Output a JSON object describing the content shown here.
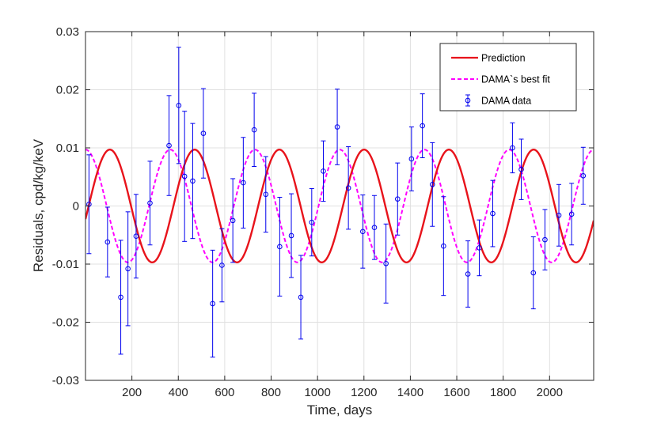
{
  "chart_data": {
    "type": "line",
    "title": "",
    "xlabel": "Time, days",
    "ylabel": "Residuals, cpd/kg/keV",
    "xlim": [
      0,
      2190
    ],
    "ylim": [
      -0.03,
      0.03
    ],
    "x_ticks": [
      200,
      400,
      600,
      800,
      1000,
      1200,
      1400,
      1600,
      1800,
      2000
    ],
    "x_tick_labels": [
      "200",
      "400",
      "600",
      "800",
      "1000",
      "1200",
      "1400",
      "1600",
      "1800",
      "2000"
    ],
    "y_ticks": [
      -0.03,
      -0.02,
      -0.01,
      0,
      0.01,
      0.02,
      0.03
    ],
    "y_tick_labels": [
      "-0.03",
      "-0.02",
      "-0.01",
      "0",
      "0.01",
      "0.02",
      "0.03"
    ],
    "grid": true,
    "legend_position": "top-right",
    "colors": {
      "prediction": "#e8131b",
      "best_fit": "#ff00ff",
      "data": "#0000ee",
      "grid": "#e0e0e0",
      "axis": "#262626"
    },
    "series": [
      {
        "name": "Prediction",
        "kind": "curve",
        "style": "solid",
        "amplitude": 0.0097,
        "period": 365.25,
        "peak_day": 105
      },
      {
        "name": "DAMA`s best fit",
        "kind": "curve",
        "style": "dashed",
        "amplitude": 0.0097,
        "period": 365.25,
        "peak_day": 0
      },
      {
        "name": "DAMA data",
        "kind": "errorbar",
        "points": [
          {
            "x": 15,
            "y": 0.0003,
            "err": 0.0085
          },
          {
            "x": 95,
            "y": -0.0062,
            "err": 0.006
          },
          {
            "x": 152,
            "y": -0.0157,
            "err": 0.0098
          },
          {
            "x": 183,
            "y": -0.0108,
            "err": 0.0098
          },
          {
            "x": 218,
            "y": -0.0052,
            "err": 0.0072
          },
          {
            "x": 278,
            "y": 0.0005,
            "err": 0.0072
          },
          {
            "x": 360,
            "y": 0.0104,
            "err": 0.0086
          },
          {
            "x": 402,
            "y": 0.0173,
            "err": 0.01
          },
          {
            "x": 427,
            "y": 0.0051,
            "err": 0.0112
          },
          {
            "x": 462,
            "y": 0.0043,
            "err": 0.0099
          },
          {
            "x": 508,
            "y": 0.0125,
            "err": 0.0077
          },
          {
            "x": 548,
            "y": -0.0168,
            "err": 0.0092
          },
          {
            "x": 588,
            "y": -0.0102,
            "err": 0.0063
          },
          {
            "x": 635,
            "y": -0.0025,
            "err": 0.0072
          },
          {
            "x": 680,
            "y": 0.004,
            "err": 0.0078
          },
          {
            "x": 727,
            "y": 0.0131,
            "err": 0.0063
          },
          {
            "x": 777,
            "y": 0.002,
            "err": 0.0065
          },
          {
            "x": 837,
            "y": -0.007,
            "err": 0.0085
          },
          {
            "x": 887,
            "y": -0.0051,
            "err": 0.0072
          },
          {
            "x": 928,
            "y": -0.0157,
            "err": 0.0072
          },
          {
            "x": 975,
            "y": -0.0028,
            "err": 0.0058
          },
          {
            "x": 1025,
            "y": 0.006,
            "err": 0.0052
          },
          {
            "x": 1085,
            "y": 0.0136,
            "err": 0.0065
          },
          {
            "x": 1133,
            "y": 0.0031,
            "err": 0.0071
          },
          {
            "x": 1195,
            "y": -0.0044,
            "err": 0.0063
          },
          {
            "x": 1245,
            "y": -0.0037,
            "err": 0.0055
          },
          {
            "x": 1295,
            "y": -0.0099,
            "err": 0.0068
          },
          {
            "x": 1345,
            "y": 0.0012,
            "err": 0.0062
          },
          {
            "x": 1405,
            "y": 0.0081,
            "err": 0.0055
          },
          {
            "x": 1452,
            "y": 0.0138,
            "err": 0.0055
          },
          {
            "x": 1495,
            "y": 0.0037,
            "err": 0.0072
          },
          {
            "x": 1543,
            "y": -0.0069,
            "err": 0.0085
          },
          {
            "x": 1648,
            "y": -0.0117,
            "err": 0.0057
          },
          {
            "x": 1697,
            "y": -0.0072,
            "err": 0.0048
          },
          {
            "x": 1755,
            "y": -0.0013,
            "err": 0.0057
          },
          {
            "x": 1840,
            "y": 0.01,
            "err": 0.0043
          },
          {
            "x": 1878,
            "y": 0.0063,
            "err": 0.0052
          },
          {
            "x": 1930,
            "y": -0.0115,
            "err": 0.0062
          },
          {
            "x": 1980,
            "y": -0.0058,
            "err": 0.0052
          },
          {
            "x": 2040,
            "y": -0.0016,
            "err": 0.0053
          },
          {
            "x": 2095,
            "y": -0.0014,
            "err": 0.0053
          },
          {
            "x": 2145,
            "y": 0.0052,
            "err": 0.0049
          }
        ]
      }
    ]
  }
}
